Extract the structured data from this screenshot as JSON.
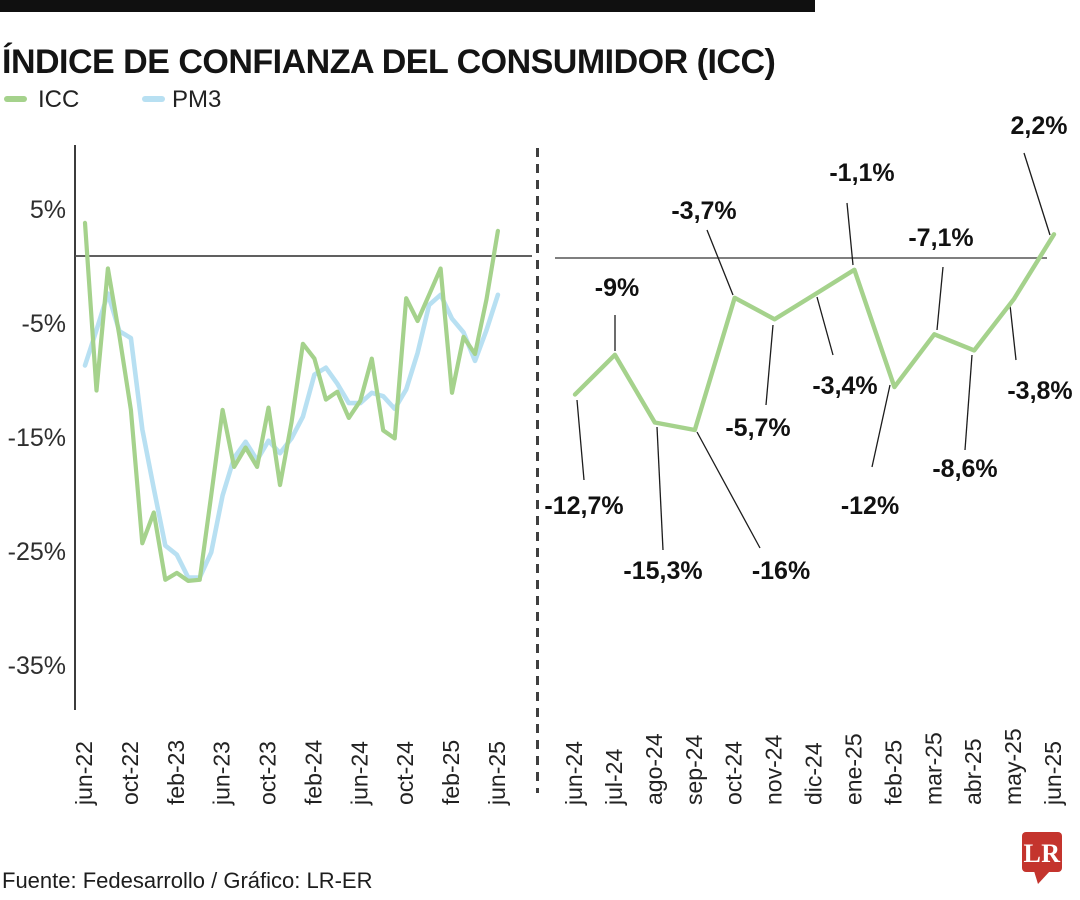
{
  "title": "ÍNDICE DE CONFIANZA DEL CONSUMIDOR (ICC)",
  "legend": [
    {
      "label": "ICC",
      "color": "#a5d28c"
    },
    {
      "label": "PM3",
      "color": "#b8e0f2"
    }
  ],
  "footer": {
    "source": "Fuente: Fedesarrollo / Gráfico: LR-ER",
    "logo_text": "LR",
    "logo_color": "#c4342d"
  },
  "colors": {
    "icc_line": "#a5d28c",
    "pm3_line": "#b8e0f2",
    "axis_line": "#3c3c3c",
    "zero_line_left": "#4a4a4a",
    "zero_line_right": "#7f7f7f",
    "tick_text": "#2e2e2e",
    "callout_line": "#1c1c1c",
    "callout_text": "#111111"
  },
  "chart_data": [
    {
      "type": "line",
      "title": "ICC y PM3 mensual jun-22 a jun-25",
      "x": [
        "jun-22",
        "jul-22",
        "ago-22",
        "sep-22",
        "oct-22",
        "nov-22",
        "dic-22",
        "ene-23",
        "feb-23",
        "mar-23",
        "abr-23",
        "may-23",
        "jun-23",
        "jul-23",
        "ago-23",
        "sep-23",
        "oct-23",
        "nov-23",
        "dic-23",
        "ene-24",
        "feb-24",
        "mar-24",
        "abr-24",
        "may-24",
        "jun-24",
        "jul-24",
        "ago-24",
        "sep-24",
        "oct-24",
        "nov-24",
        "dic-24",
        "ene-25",
        "feb-25",
        "mar-25",
        "abr-25",
        "may-25",
        "jun-25"
      ],
      "series": [
        {
          "name": "ICC",
          "values": [
            2.9,
            -11.8,
            -1.1,
            -7.0,
            -13.5,
            -25.2,
            -22.5,
            -28.4,
            -27.8,
            -28.5,
            -28.4,
            -21.0,
            -13.5,
            -18.5,
            -16.8,
            -18.5,
            -13.3,
            -20.1,
            -14.6,
            -7.7,
            -9.0,
            -12.6,
            -11.9,
            -14.2,
            -12.7,
            -9.0,
            -15.3,
            -16.0,
            -3.7,
            -5.7,
            -3.4,
            -1.1,
            -12.0,
            -7.1,
            -8.6,
            -3.8,
            2.2
          ]
        },
        {
          "name": "PM3",
          "values": [
            -9.6,
            -6.5,
            -3.3,
            -6.6,
            -7.2,
            -15.2,
            -20.4,
            -25.4,
            -26.2,
            -28.2,
            -28.2,
            -26.0,
            -21.0,
            -17.7,
            -16.3,
            -17.9,
            -16.2,
            -17.3,
            -16.0,
            -14.1,
            -10.4,
            -9.8,
            -11.2,
            -12.9,
            -12.9,
            -12.0,
            -12.3,
            -13.4,
            -11.7,
            -8.5,
            -4.3,
            -3.4,
            -5.5,
            -6.7,
            -9.2,
            -6.5,
            -3.4
          ]
        }
      ],
      "y_tick_labels": [
        "5%",
        "-5%",
        "-15%",
        "-25%",
        "-35%"
      ],
      "y_tick_values": [
        5,
        -5,
        -15,
        -25,
        -35
      ],
      "x_tick_labels": [
        "jun-22",
        "oct-22",
        "feb-23",
        "jun-23",
        "oct-23",
        "feb-24",
        "jun-24",
        "oct-24",
        "feb-25",
        "jun-25"
      ],
      "ylim": [
        -37,
        7
      ],
      "grid": false,
      "legend_position": "top-left"
    },
    {
      "type": "line",
      "title": "ICC últimos 13 meses",
      "x": [
        "jun-24",
        "jul-24",
        "ago-24",
        "sep-24",
        "oct-24",
        "nov-24",
        "dic-24",
        "ene-25",
        "feb-25",
        "mar-25",
        "abr-25",
        "may-25",
        "jun-25"
      ],
      "series": [
        {
          "name": "ICC",
          "values": [
            -12.7,
            -9,
            -15.3,
            -16,
            -3.7,
            -5.7,
            -3.4,
            -1.1,
            -12,
            -7.1,
            -8.6,
            -3.8,
            2.2
          ]
        }
      ],
      "data_labels": [
        "-12,7%",
        "-9%",
        "-15,3%",
        "-16%",
        "-3,7%",
        "-5,7%",
        "-3,4%",
        "-1,1%",
        "-12%",
        "-7,1%",
        "-8,6%",
        "-3,8%",
        "2,2%"
      ],
      "ylim": [
        -18,
        4
      ],
      "grid": false
    }
  ]
}
